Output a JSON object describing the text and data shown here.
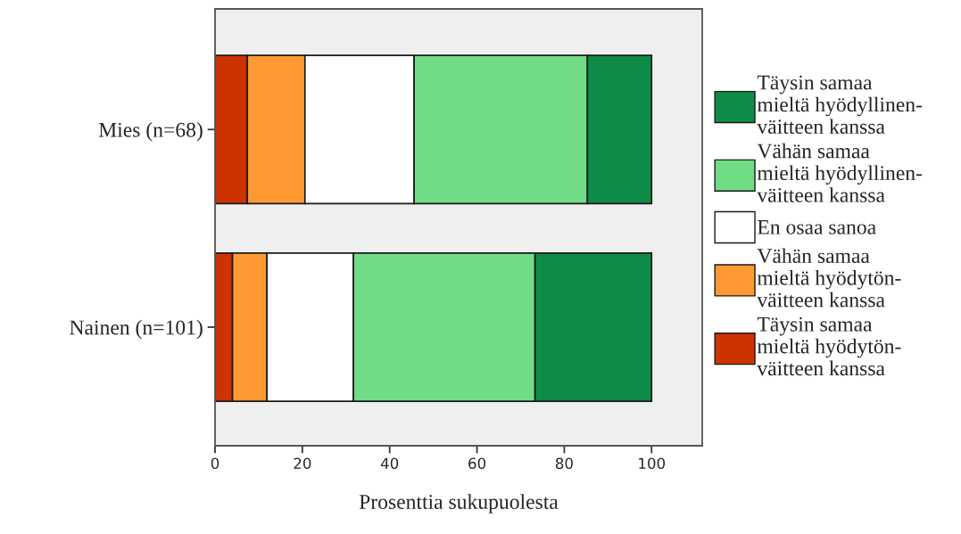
{
  "chart_data": {
    "type": "bar",
    "orientation": "horizontal",
    "stacked": true,
    "categories": [
      "Mies (n=68)",
      "Nainen (n=101)"
    ],
    "series": [
      {
        "name": "Täysin samaa\nmieltä hyödytön-\nväitteen kanssa",
        "color": "#cc3300",
        "values": [
          7.4,
          4.0
        ]
      },
      {
        "name": "Vähän samaa\nmieltä hyödytön-\nväitteen kanssa",
        "color": "#ff9933",
        "values": [
          13.2,
          7.9
        ]
      },
      {
        "name": "En osaa sanoa",
        "color": "#ffffff",
        "values": [
          25.0,
          19.8
        ]
      },
      {
        "name": "Vähän samaa\nmieltä hyödyllinen-\nväitteen kanssa",
        "color": "#70dd86",
        "values": [
          39.7,
          41.6
        ]
      },
      {
        "name": "Täysin samaa\nmieltä hyödyllinen-\nväitteen kanssa",
        "color": "#0e8c47",
        "values": [
          14.7,
          26.7
        ]
      }
    ],
    "xlabel": "Prosenttia sukupuolesta",
    "xlim": [
      0,
      111.6
    ],
    "xticks": [
      0,
      20,
      40,
      60,
      80,
      100
    ],
    "grid": false,
    "legend": "right"
  }
}
